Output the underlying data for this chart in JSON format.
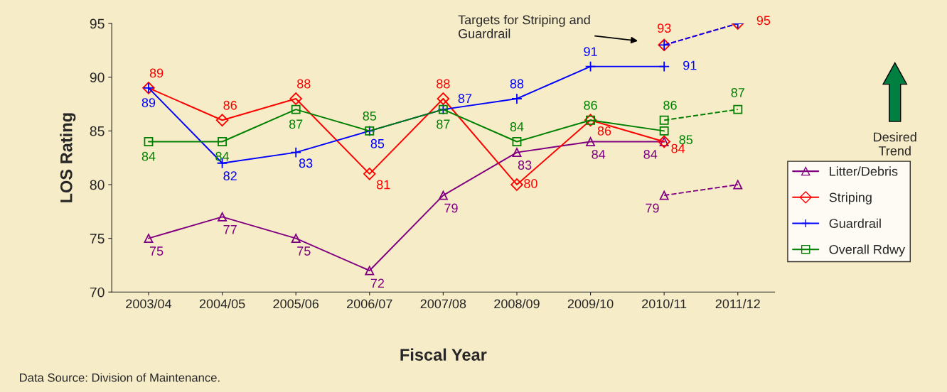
{
  "chart_data": {
    "type": "line",
    "xlabel": "Fiscal Year",
    "ylabel": "LOS Rating",
    "categories": [
      "2003/04",
      "2004/05",
      "2005/06",
      "2006/07",
      "2007/08",
      "2008/09",
      "2009/10",
      "2010/11",
      "2011/12"
    ],
    "series": [
      {
        "name": "Litter/Debris",
        "color": "#800080",
        "marker": "triangle",
        "values": [
          75,
          77,
          75,
          72,
          79,
          83,
          84,
          84,
          null
        ],
        "value_labels": [
          "75",
          "77",
          "75",
          "72",
          "79",
          "83",
          "84",
          "84",
          null
        ]
      },
      {
        "name": "Striping",
        "color": "#ff0000",
        "marker": "diamond",
        "values": [
          89,
          86,
          88,
          81,
          88,
          80,
          86,
          84,
          null
        ],
        "value_labels": [
          "89",
          "86",
          "88",
          "81",
          "88",
          "80",
          "86",
          "84",
          null
        ]
      },
      {
        "name": "Guardrail",
        "color": "#0000ff",
        "marker": "cross",
        "values": [
          89,
          82,
          83,
          85,
          87,
          88,
          91,
          91,
          null
        ],
        "value_labels": [
          "89",
          "82",
          "83",
          "85",
          "87",
          "88",
          "91",
          "91",
          null
        ]
      },
      {
        "name": "Overall Rdwy",
        "color": "#008000",
        "marker": "square",
        "values": [
          84,
          84,
          87,
          85,
          87,
          84,
          86,
          85,
          null
        ],
        "value_labels": [
          "84",
          "84",
          "87",
          "85",
          "87",
          "84",
          "86",
          "85",
          null
        ]
      },
      {
        "color": "#800080",
        "marker": "triangle",
        "line_style": "dashed",
        "values": [
          null,
          null,
          null,
          null,
          null,
          null,
          null,
          79,
          80
        ],
        "value_labels": [
          null,
          null,
          null,
          null,
          null,
          null,
          null,
          "79",
          null
        ]
      },
      {
        "color": "#ff0000",
        "marker": "diamond",
        "line_style": "dashed",
        "values": [
          null,
          null,
          null,
          null,
          null,
          null,
          null,
          93,
          95
        ],
        "value_labels": [
          null,
          null,
          null,
          null,
          null,
          null,
          null,
          "93",
          "95"
        ]
      },
      {
        "color": "#0000ff",
        "marker": "cross",
        "line_style": "dashed",
        "values": [
          null,
          null,
          null,
          null,
          null,
          null,
          null,
          93,
          95
        ]
      },
      {
        "color": "#008000",
        "marker": "square",
        "line_style": "dashed",
        "values": [
          null,
          null,
          null,
          null,
          null,
          null,
          null,
          86,
          87
        ],
        "value_labels": [
          null,
          null,
          null,
          null,
          null,
          null,
          null,
          "86",
          "87"
        ]
      }
    ],
    "ylim": [
      70,
      95
    ],
    "yticks": [
      70,
      75,
      80,
      85,
      90,
      95
    ],
    "grid": false,
    "legend": "right",
    "annotations": [
      "Targets for Striping and\nGuardrail",
      "Desired\nTrend",
      "Data Source: Division of Maintenance."
    ]
  }
}
